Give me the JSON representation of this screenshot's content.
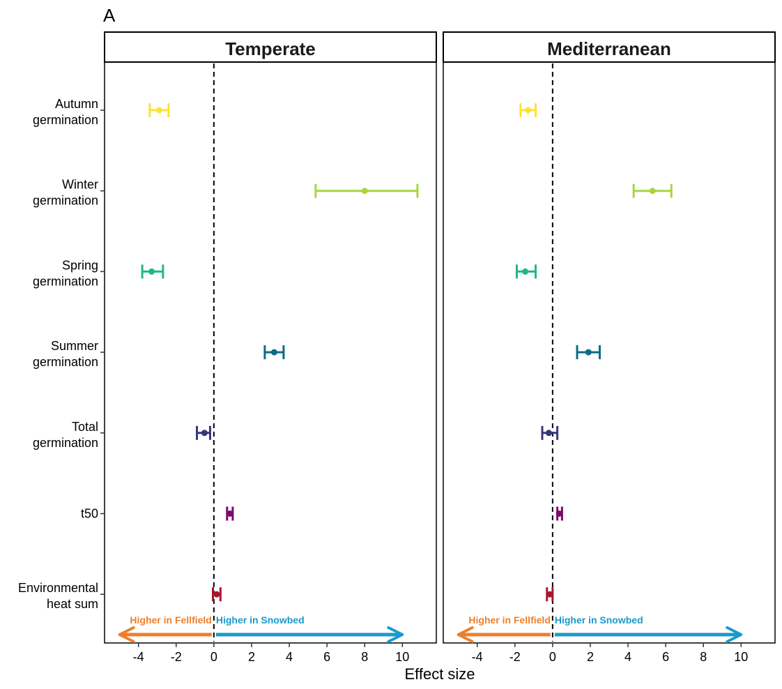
{
  "chart_data": {
    "type": "forest",
    "panel_label": "A",
    "xlabel": "Effect size",
    "ylabel": "",
    "x_ticks": [
      -4,
      -2,
      0,
      2,
      4,
      6,
      8,
      10
    ],
    "xlim": [
      -5.8,
      11.8
    ],
    "reference_line": 0,
    "categories": [
      {
        "lines": [
          "Autumn",
          "germination"
        ],
        "color": "#FDE333"
      },
      {
        "lines": [
          "Winter",
          "germination"
        ],
        "color": "#A6D63F"
      },
      {
        "lines": [
          "Spring",
          "germination"
        ],
        "color": "#1DBA83"
      },
      {
        "lines": [
          "Summer",
          "germination"
        ],
        "color": "#0B6B88"
      },
      {
        "lines": [
          "Total",
          "germination"
        ],
        "color": "#33397A"
      },
      {
        "lines": [
          "t50"
        ],
        "color": "#7A0B6A"
      },
      {
        "lines": [
          "Environmental",
          "heat sum"
        ],
        "color": "#A8152F"
      }
    ],
    "panels": [
      {
        "title": "Temperate",
        "points": [
          {
            "est": -2.9,
            "lo": -3.4,
            "hi": -2.4
          },
          {
            "est": 8.0,
            "lo": 5.4,
            "hi": 10.8
          },
          {
            "est": -3.3,
            "lo": -3.8,
            "hi": -2.7
          },
          {
            "est": 3.2,
            "lo": 2.7,
            "hi": 3.7
          },
          {
            "est": -0.5,
            "lo": -0.9,
            "hi": -0.2
          },
          {
            "est": 0.85,
            "lo": 0.7,
            "hi": 1.0
          },
          {
            "est": 0.15,
            "lo": -0.05,
            "hi": 0.35
          }
        ]
      },
      {
        "title": "Mediterranean",
        "points": [
          {
            "est": -1.3,
            "lo": -1.7,
            "hi": -0.9
          },
          {
            "est": 5.3,
            "lo": 4.3,
            "hi": 6.3
          },
          {
            "est": -1.45,
            "lo": -1.9,
            "hi": -0.9
          },
          {
            "est": 1.9,
            "lo": 1.3,
            "hi": 2.5
          },
          {
            "est": -0.2,
            "lo": -0.55,
            "hi": 0.25
          },
          {
            "est": 0.35,
            "lo": 0.25,
            "hi": 0.5
          },
          {
            "est": -0.15,
            "lo": -0.3,
            "hi": 0.0
          }
        ]
      }
    ],
    "direction_arrows": {
      "left": {
        "label": "Higher in Fellfield",
        "color": "#EE7F2D",
        "to": -5.0
      },
      "right": {
        "label": "Higher in Snowbed",
        "color": "#1A9ACB",
        "to": 10.0
      }
    }
  }
}
